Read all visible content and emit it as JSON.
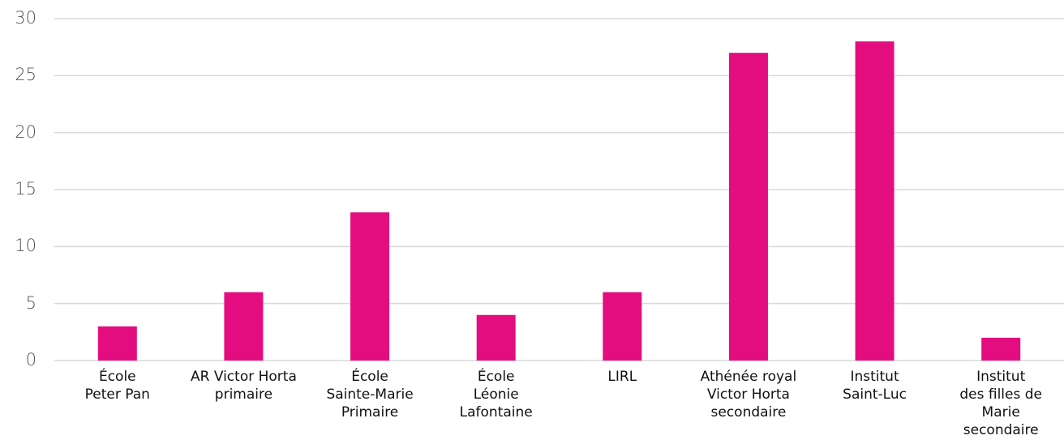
{
  "chart_data": {
    "type": "bar",
    "categories": [
      "École\nPeter Pan",
      "AR Victor Horta\nprimaire",
      "École\nSainte-Marie\nPrimaire",
      "École\nLéonie\nLafontaine",
      "LIRL",
      "Athénée royal\nVictor Horta\nsecondaire",
      "Institut\nSaint-Luc",
      "Institut\ndes filles de\nMarie\nsecondaire"
    ],
    "values": [
      3,
      6,
      13,
      4,
      6,
      27,
      28,
      2
    ],
    "color": "#e30d7f",
    "ylim": [
      0,
      30
    ],
    "yticks": [
      0,
      5,
      10,
      15,
      20,
      25,
      30
    ],
    "grid": true
  }
}
